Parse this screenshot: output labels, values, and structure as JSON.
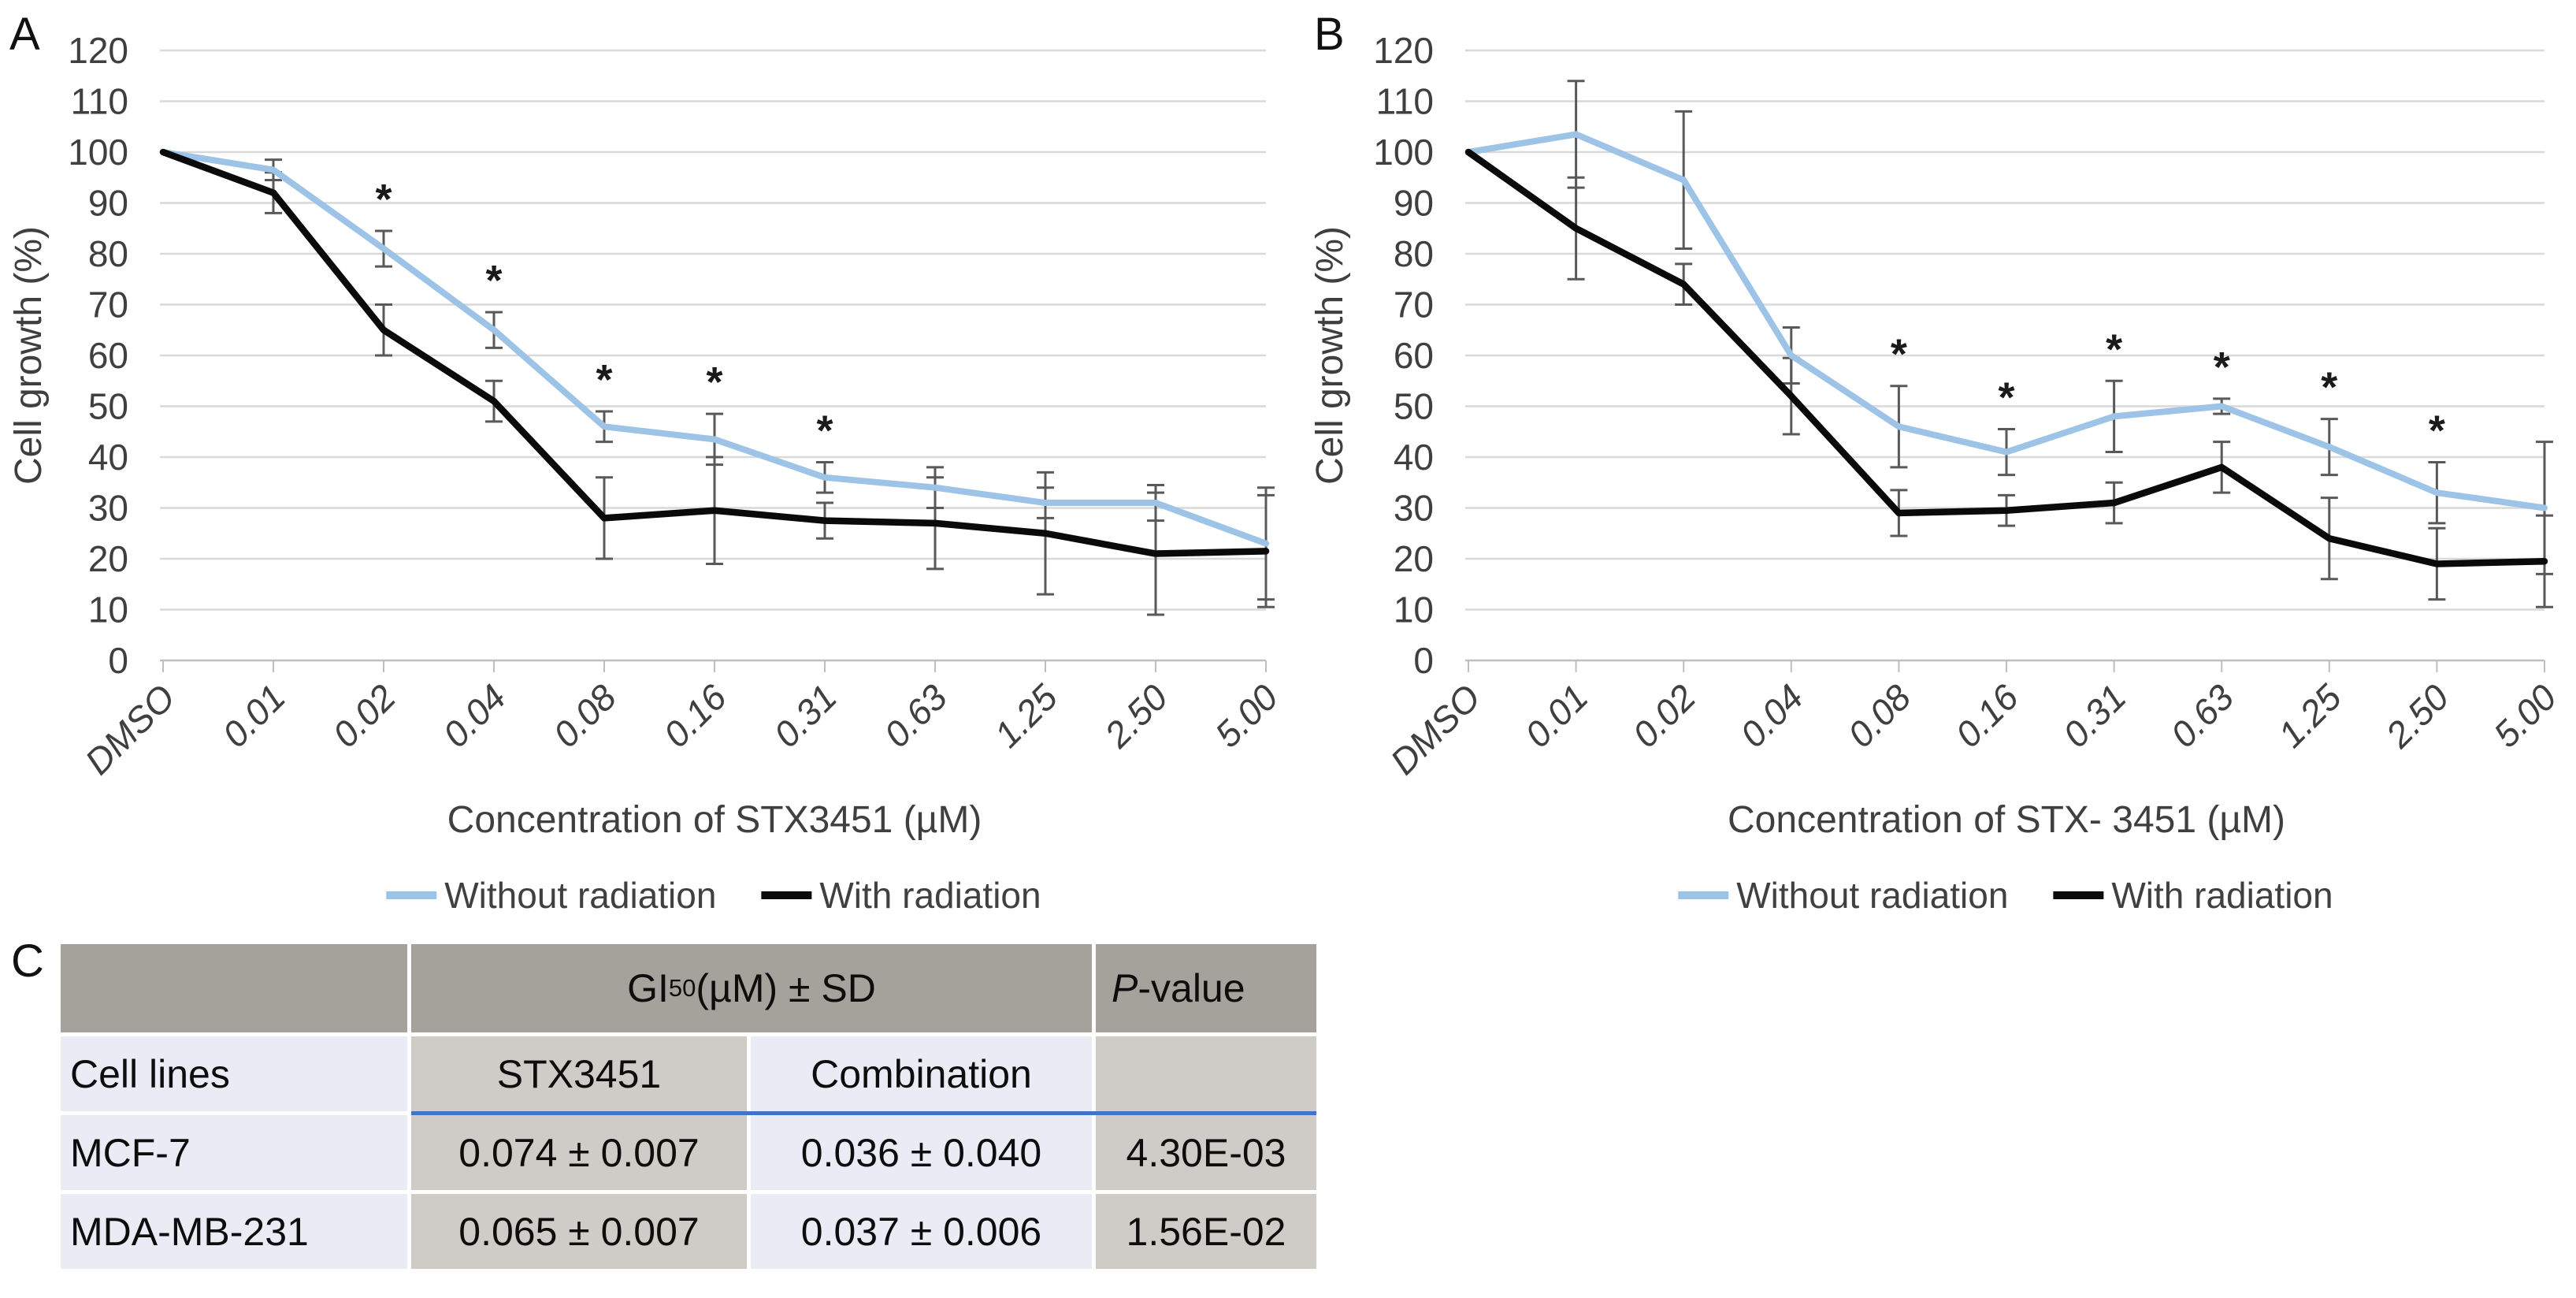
{
  "panels": {
    "a": "A",
    "b": "B",
    "c": "C"
  },
  "colors": {
    "without_radiation_line": "#9dc3e6",
    "with_radiation_line": "#0a0a0a",
    "gridline": "#d9d9d9",
    "axis_line": "#bfbfbf",
    "axis_text": "#3f3f3f",
    "error_bar": "#595959",
    "significance_marker": "#1a1a1a",
    "table_header_bg": "#a5a19b",
    "table_gray_bg": "#cfccc7",
    "table_lavender_bg": "#e9ebf5",
    "table_rule_blue": "#4472c4"
  },
  "chart_data": [
    {
      "panel": "A",
      "type": "line",
      "ylabel": "Cell growth (%)",
      "xlabel": "Concentration of  STX3451 (µM)",
      "ylim": [
        0,
        120
      ],
      "ytick_step": 10,
      "grid": true,
      "legend_position": "bottom",
      "categories": [
        "DMSO",
        "0.01",
        "0.02",
        "0.04",
        "0.08",
        "0.16",
        "0.31",
        "0.63",
        "1.25",
        "2.50",
        "5.00"
      ],
      "series": [
        {
          "name": "Without radiation",
          "color": "#9dc3e6",
          "values": [
            100,
            96.5,
            81,
            65,
            46,
            43.5,
            36,
            34,
            31,
            31,
            23
          ],
          "errors": [
            0,
            2,
            3.5,
            3.5,
            3,
            5,
            3,
            4,
            3,
            3.5,
            11
          ]
        },
        {
          "name": "With radiation",
          "color": "#0a0a0a",
          "values": [
            100,
            92,
            65,
            51,
            28,
            29.5,
            27.5,
            27,
            25,
            21,
            21.5
          ],
          "errors": [
            0,
            4,
            5,
            4,
            8,
            10.5,
            3.5,
            9,
            12,
            12,
            11
          ]
        }
      ],
      "significance": {
        "marker": "*",
        "categories": [
          "0.02",
          "0.04",
          "0.08",
          "0.16",
          "0.31"
        ]
      }
    },
    {
      "panel": "B",
      "type": "line",
      "ylabel": "Cell growth (%)",
      "xlabel": "Concentration of  STX- 3451 (µM)",
      "ylim": [
        0,
        120
      ],
      "ytick_step": 10,
      "grid": true,
      "legend_position": "bottom",
      "categories": [
        "DMSO",
        "0.01",
        "0.02",
        "0.04",
        "0.08",
        "0.16",
        "0.31",
        "0.63",
        "1.25",
        "2.50",
        "5.00"
      ],
      "series": [
        {
          "name": "Without radiation",
          "color": "#9dc3e6",
          "values": [
            100,
            103.5,
            94.5,
            60,
            46,
            41,
            48,
            50,
            42,
            33,
            30
          ],
          "errors": [
            0,
            10.5,
            13.5,
            5.5,
            8,
            4.5,
            7,
            1.5,
            5.5,
            6,
            13
          ]
        },
        {
          "name": "With radiation",
          "color": "#0a0a0a",
          "values": [
            100,
            85,
            74,
            52,
            29,
            29.5,
            31,
            38,
            24,
            19,
            19.5
          ],
          "errors": [
            0,
            10,
            4,
            7.5,
            4.5,
            3,
            4,
            5,
            8,
            7,
            9
          ]
        }
      ],
      "significance": {
        "marker": "*",
        "categories": [
          "0.08",
          "0.16",
          "0.31",
          "0.63",
          "1.25",
          "2.50"
        ]
      }
    }
  ],
  "table_c": {
    "group_header": {
      "prefix": "GI",
      "sub": "50",
      "suffix": " (µM) ± SD"
    },
    "p_header": {
      "italic": "P",
      "rest": "-value"
    },
    "row_header": "Cell lines",
    "col_headers": [
      "STX3451",
      "Combination"
    ],
    "rows": [
      {
        "name": "MCF-7",
        "stx": "0.074 ± 0.007",
        "combo": "0.036 ± 0.040",
        "p": "4.30E-03"
      },
      {
        "name": "MDA-MB-231",
        "stx": "0.065 ± 0.007",
        "combo": "0.037 ± 0.006",
        "p": "1.56E-02"
      }
    ]
  }
}
